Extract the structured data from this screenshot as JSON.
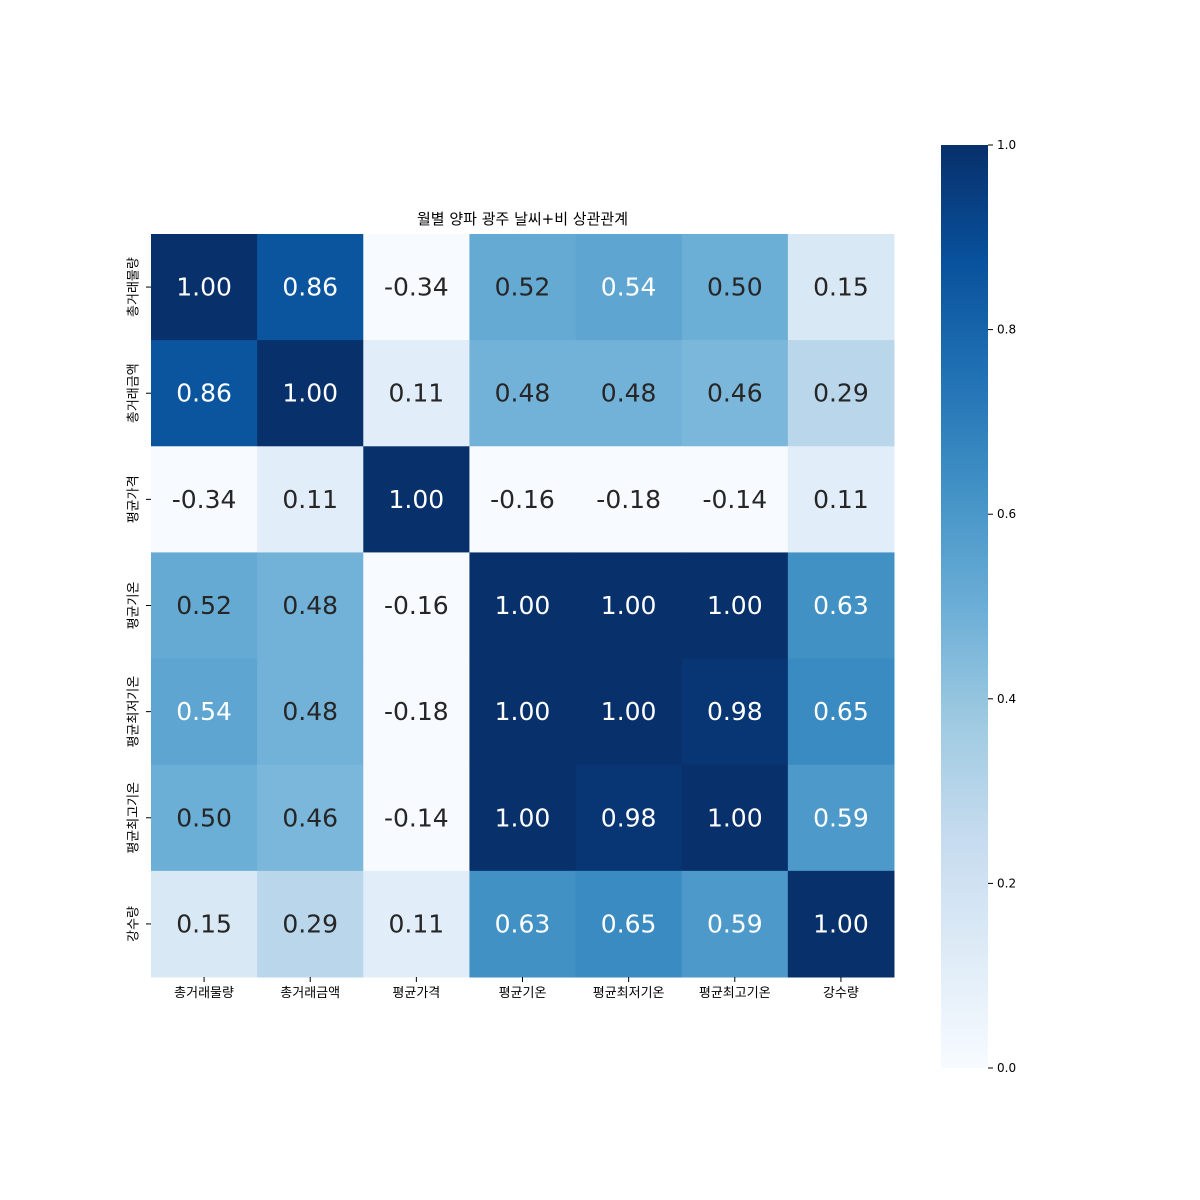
{
  "chart_data": {
    "type": "heatmap",
    "title": "월별 양파 광주 날씨+비 상관관계",
    "row_labels": [
      "총거래물량",
      "총거래금액",
      "평균가격",
      "평균기온",
      "평균최저기온",
      "평균최고기온",
      "강수량"
    ],
    "col_labels": [
      "총거래물량",
      "총거래금액",
      "평균가격",
      "평균기온",
      "평균최저기온",
      "평균최고기온",
      "강수량"
    ],
    "values": [
      [
        1.0,
        0.86,
        -0.34,
        0.52,
        0.54,
        0.5,
        0.15
      ],
      [
        0.86,
        1.0,
        0.11,
        0.48,
        0.48,
        0.46,
        0.29
      ],
      [
        -0.34,
        0.11,
        1.0,
        -0.16,
        -0.18,
        -0.14,
        0.11
      ],
      [
        0.52,
        0.48,
        -0.16,
        1.0,
        1.0,
        1.0,
        0.63
      ],
      [
        0.54,
        0.48,
        -0.18,
        1.0,
        1.0,
        0.98,
        0.65
      ],
      [
        0.5,
        0.46,
        -0.14,
        1.0,
        0.98,
        1.0,
        0.59
      ],
      [
        0.15,
        0.29,
        0.11,
        0.63,
        0.65,
        0.59,
        1.0
      ]
    ],
    "value_format": "0.00",
    "colormap": "Blues",
    "vmin": 0.0,
    "vmax": 1.0,
    "colorbar": {
      "ticks": [
        0.0,
        0.2,
        0.4,
        0.6,
        0.8,
        1.0
      ],
      "tick_labels": [
        "0.0",
        "0.2",
        "0.4",
        "0.6",
        "0.8",
        "1.0"
      ],
      "placement": "right"
    },
    "grid": false
  }
}
